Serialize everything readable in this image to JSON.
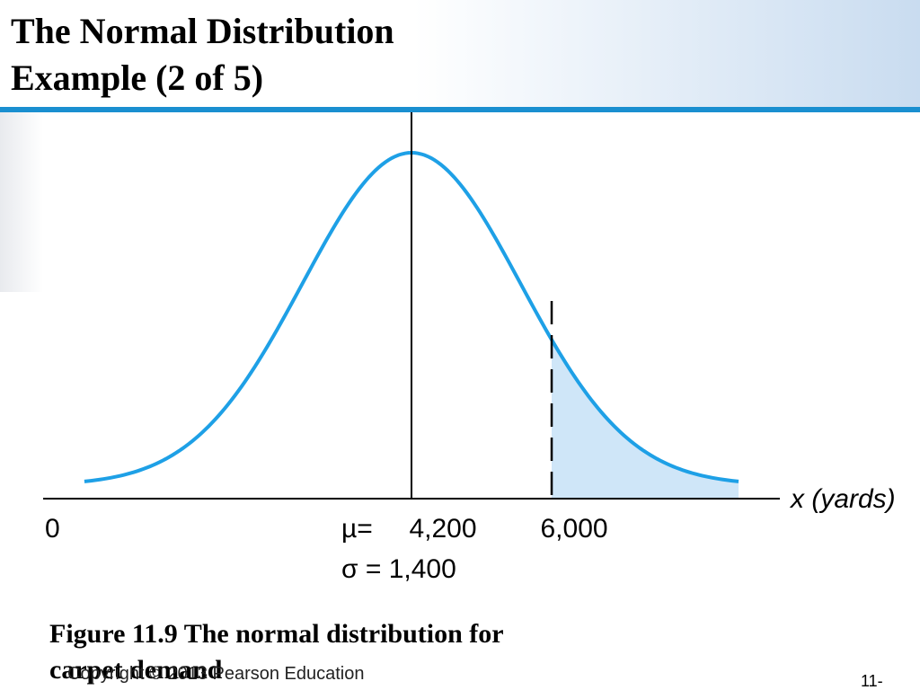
{
  "title": [
    "The Normal Distribution",
    "Example (2 of 5)"
  ],
  "chart_data": {
    "type": "normal",
    "mean": 4200,
    "sd": 1400,
    "shade_from": 6000,
    "color": "#1ea0e6",
    "shade_color": "#cfe6f8",
    "xlim": [
      -530,
      8930
    ],
    "xticks": [
      {
        "value": 0,
        "label": "0"
      },
      {
        "value": 4200,
        "label": "4,200"
      },
      {
        "value": 6000,
        "label": "6,000"
      }
    ],
    "x_label": "x (yards)",
    "mean_label": "µ=",
    "sigma_label": "σ = 1,400"
  },
  "caption": [
    "Figure 11.9 The normal distribution for",
    "carpet demand"
  ],
  "footer": {
    "copyright": "Copyright © 2013 Pearson Education",
    "page": "11-"
  }
}
